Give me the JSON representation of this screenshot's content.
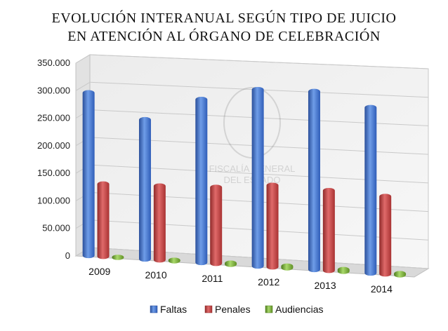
{
  "chart_data": {
    "type": "bar",
    "title_lines": [
      "EVOLUCIÓN INTERANUAL SEGÚN TIPO DE JUICIO",
      "EN ATENCIÓN AL ÓRGANO DE CELEBRACIÓN"
    ],
    "categories": [
      "2009",
      "2010",
      "2011",
      "2012",
      "2013",
      "2014"
    ],
    "series": [
      {
        "name": "Faltas",
        "values": [
          302000,
          258000,
          299000,
          321000,
          322000,
          298000
        ]
      },
      {
        "name": "Penales",
        "values": [
          138000,
          140000,
          143000,
          152000,
          148000,
          143000
        ]
      },
      {
        "name": "Audiencias",
        "values": [
          7000,
          8000,
          9000,
          10000,
          10000,
          9000
        ]
      }
    ],
    "y_ticks": [
      "0",
      "50.000",
      "100.000",
      "150.000",
      "200.000",
      "250.000",
      "300.000",
      "350.000"
    ],
    "ylim": [
      0,
      350000
    ],
    "grid": true,
    "legend_position": "bottom",
    "colors": {
      "Faltas": "#4a7fd6",
      "Penales": "#d44b4b",
      "Audiencias": "#8fc44a"
    },
    "watermark_text": [
      "FISCALÍA GENERAL",
      "DEL ESTADO"
    ]
  }
}
